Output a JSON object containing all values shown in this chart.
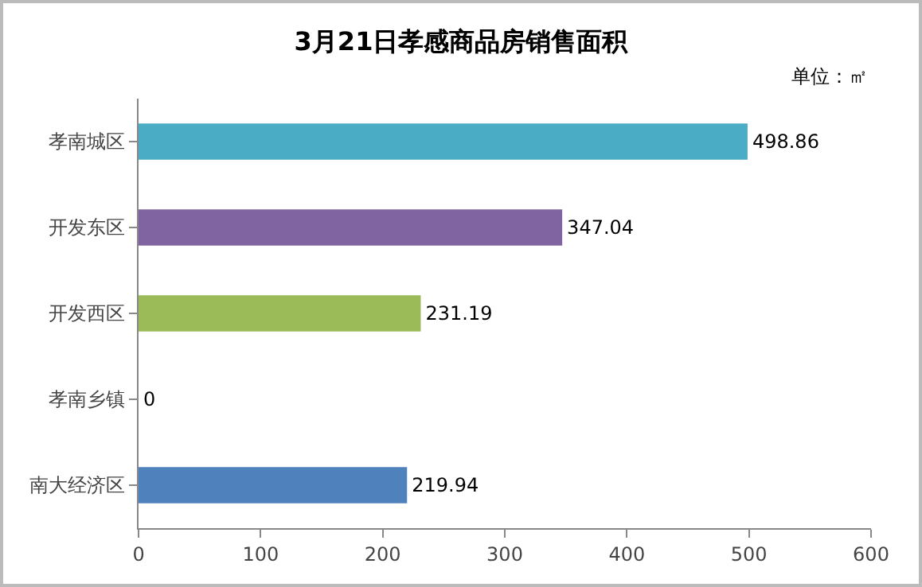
{
  "chart_data": {
    "type": "bar",
    "orientation": "horizontal",
    "title": "3月21日孝感商品房销售面积",
    "categories": [
      "孝南城区",
      "开发东区",
      "开发西区",
      "孝南乡镇",
      "南大经济区"
    ],
    "values": [
      498.86,
      347.04,
      231.19,
      0,
      219.94
    ],
    "colors": [
      "#4bacc6",
      "#8064a2",
      "#9bbb59",
      "#9bbb59",
      "#4f81bd"
    ],
    "xlim": [
      0,
      600
    ],
    "xticks": [
      0,
      100,
      200,
      300,
      400,
      500,
      600
    ],
    "data_labels": true,
    "grid": false,
    "legend": false,
    "annotations": [
      "单位：㎡"
    ]
  }
}
